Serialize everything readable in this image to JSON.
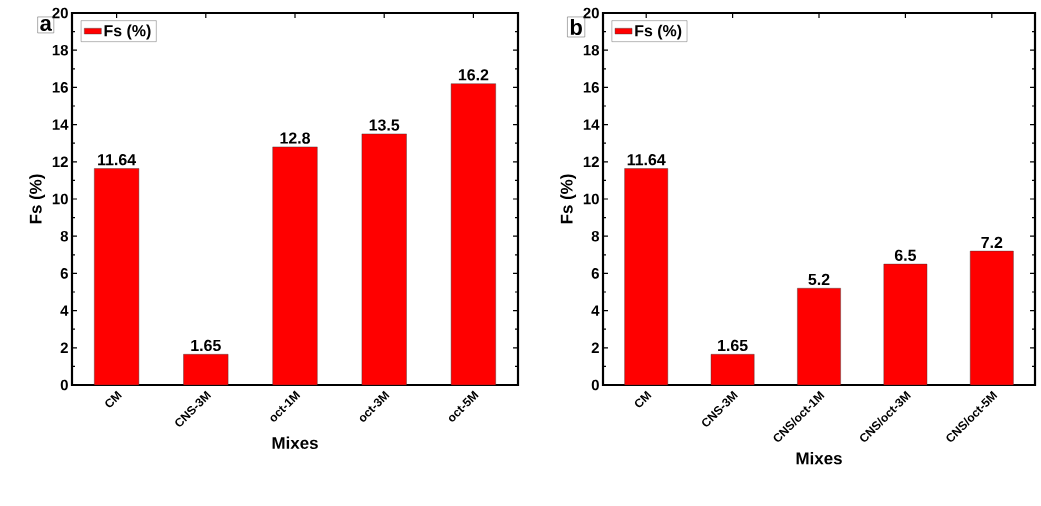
{
  "chart_data": [
    {
      "type": "bar",
      "xlabel": "Mixes",
      "ylabel": "Fs (%)",
      "annotations": [
        "a"
      ],
      "categories": [
        "CM",
        "CNS-3M",
        "oct-1M",
        "oct-3M",
        "oct-5M"
      ],
      "series": [
        {
          "name": "Fs (%)",
          "color": "#ff0000",
          "values": [
            11.64,
            1.65,
            12.8,
            13.5,
            16.2
          ]
        }
      ],
      "ylim": [
        0,
        20
      ],
      "yticks": [
        0,
        2,
        4,
        6,
        8,
        10,
        12,
        14,
        16,
        18,
        20
      ],
      "data_labels": true,
      "legend": "top left"
    },
    {
      "type": "bar",
      "xlabel": "Mixes",
      "ylabel": "Fs (%)",
      "annotations": [
        "b"
      ],
      "categories": [
        "CM",
        "CNS-3M",
        "CNS/oct-1M",
        "CNS/oct-3M",
        "CNS/oct-5M"
      ],
      "series": [
        {
          "name": "Fs (%)",
          "color": "#ff0000",
          "values": [
            11.64,
            1.65,
            5.2,
            6.5,
            7.2
          ]
        }
      ],
      "ylim": [
        0,
        20
      ],
      "yticks": [
        0,
        2,
        4,
        6,
        8,
        10,
        12,
        14,
        16,
        18,
        20
      ],
      "data_labels": true,
      "legend": "top left"
    }
  ]
}
